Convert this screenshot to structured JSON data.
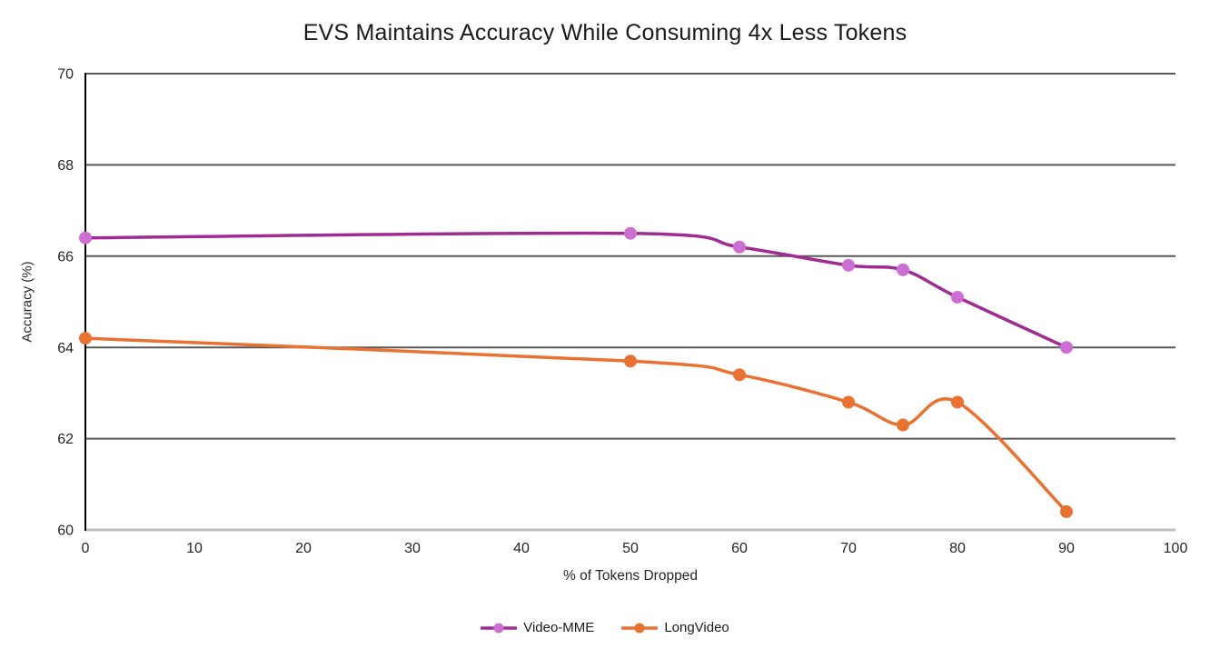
{
  "chart_data": {
    "type": "line",
    "title": "EVS Maintains Accuracy While Consuming 4x Less Tokens",
    "xlabel": "% of Tokens Dropped",
    "ylabel": "Accuracy (%)",
    "xlim": [
      0,
      100
    ],
    "ylim": [
      60,
      70
    ],
    "x_ticks": [
      0,
      10,
      20,
      30,
      40,
      50,
      60,
      70,
      80,
      90,
      100
    ],
    "y_ticks": [
      60,
      62,
      64,
      66,
      68,
      70
    ],
    "grid": "horizontal",
    "legend_position": "bottom",
    "line_style": "smooth",
    "series": [
      {
        "name": "Video-MME",
        "line_color": "#A02B93",
        "marker_color": "#CD6ED3",
        "x": [
          0,
          50,
          60,
          70,
          75,
          80,
          90
        ],
        "values": [
          66.4,
          66.5,
          66.2,
          65.8,
          65.7,
          65.1,
          64.0
        ]
      },
      {
        "name": "LongVideo",
        "line_color": "#E97132",
        "marker_color": "#E97132",
        "x": [
          0,
          50,
          60,
          70,
          75,
          80,
          90
        ],
        "values": [
          64.2,
          63.7,
          63.4,
          62.8,
          62.3,
          62.8,
          60.4
        ]
      }
    ],
    "colors": {
      "gridline": "#595959",
      "axis_left": "#000000",
      "axis_bottom": "#BFBFBF",
      "tick_text": "#262626",
      "title_text": "#1a1a1a"
    }
  }
}
